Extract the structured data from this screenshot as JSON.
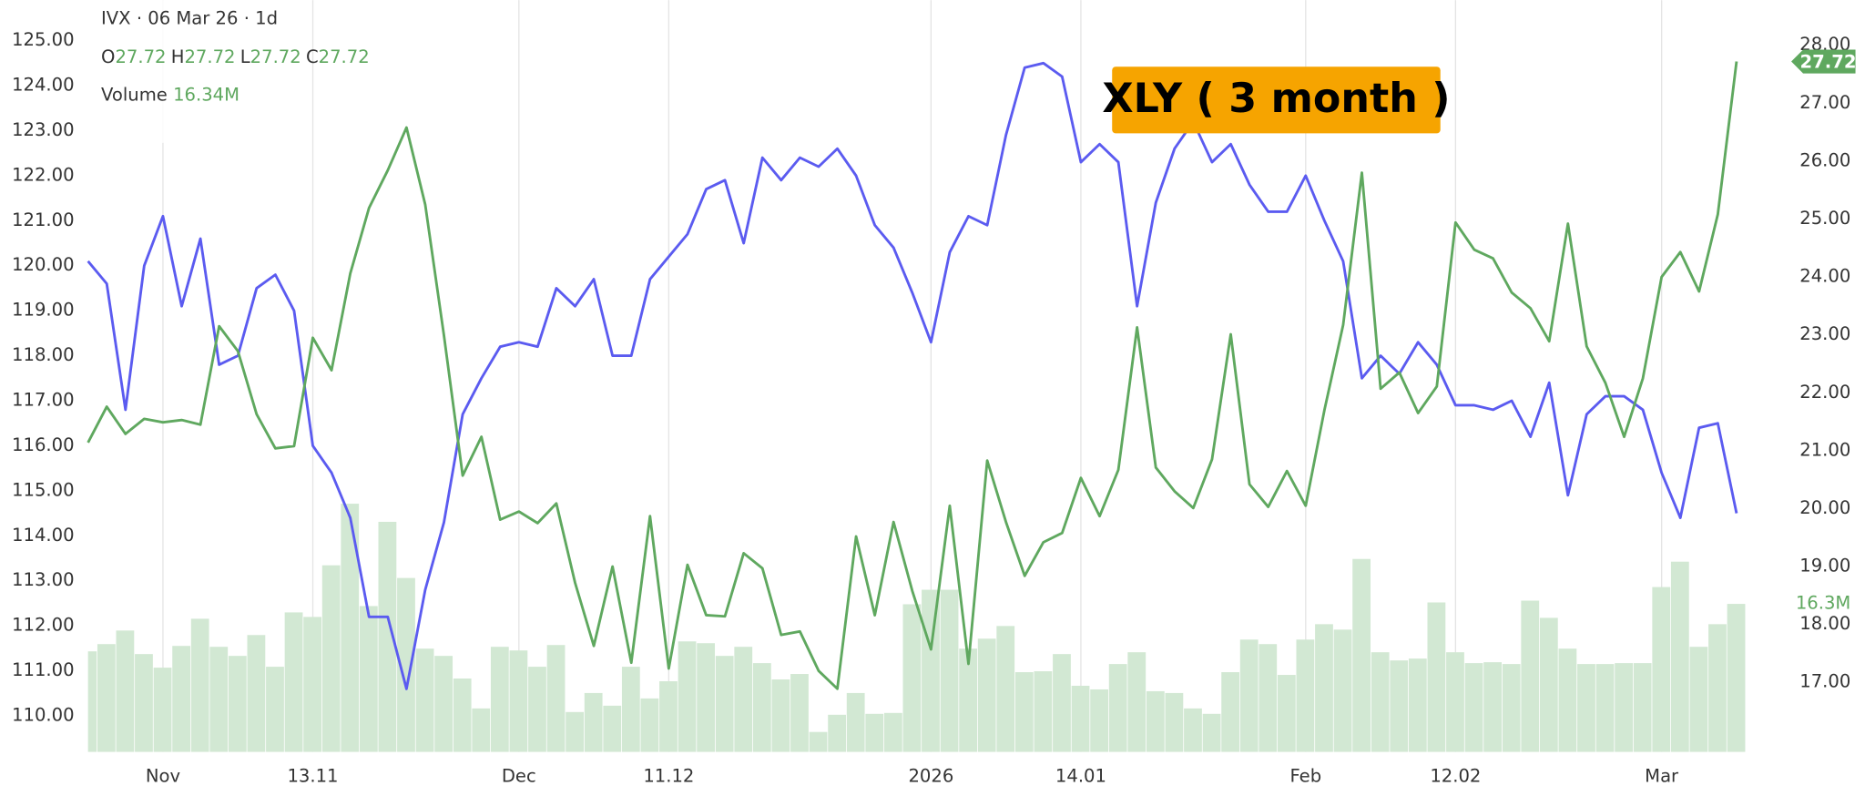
{
  "chart_data": {
    "type": "line",
    "title": "XLY ( 3 month )",
    "header": {
      "symbol": "IVX · 06 Mar 26 · 1d",
      "ohlc": [
        {
          "key": "O",
          "value": "27.72"
        },
        {
          "key": "H",
          "value": "27.72"
        },
        {
          "key": "L",
          "value": "27.72"
        },
        {
          "key": "C",
          "value": "27.72"
        }
      ],
      "volume": {
        "key": "Volume",
        "value": "16.34M"
      }
    },
    "categories": [
      null,
      null,
      null,
      null,
      "Nov",
      null,
      null,
      null,
      null,
      null,
      null,
      null,
      "13.11",
      null,
      null,
      null,
      null,
      null,
      null,
      null,
      null,
      null,
      null,
      "Dec",
      null,
      null,
      null,
      null,
      null,
      null,
      null,
      "11.12",
      null,
      null,
      null,
      null,
      null,
      null,
      null,
      null,
      null,
      null,
      null,
      null,
      null,
      "2026",
      null,
      null,
      null,
      null,
      null,
      null,
      null,
      "14.01",
      null,
      null,
      null,
      null,
      null,
      null,
      null,
      null,
      null,
      null,
      null,
      "Feb",
      null,
      null,
      null,
      null,
      null,
      null,
      null,
      "12.02",
      null,
      null,
      null,
      null,
      null,
      null,
      null,
      null,
      null,
      null,
      "Mar",
      null,
      null,
      null,
      null
    ],
    "series": [
      {
        "color": "#5b5bf0",
        "values": [
          120.1,
          119.6,
          116.8,
          120.0,
          121.1,
          119.1,
          120.6,
          117.8,
          118.0,
          119.5,
          119.8,
          119.0,
          116.0,
          115.4,
          114.4,
          112.2,
          112.2,
          110.6,
          112.8,
          114.3,
          116.7,
          117.5,
          118.2,
          118.3,
          118.2,
          119.5,
          119.1,
          119.7,
          118.0,
          118.0,
          119.7,
          120.2,
          120.7,
          121.7,
          121.9,
          120.5,
          122.4,
          121.9,
          122.4,
          122.2,
          122.6,
          122.0,
          120.9,
          120.4,
          119.4,
          118.3,
          120.3,
          121.1,
          120.9,
          122.9,
          124.4,
          124.5,
          124.2,
          122.3,
          122.7,
          122.3,
          119.1,
          121.4,
          122.6,
          123.2,
          122.3,
          122.7,
          121.8,
          121.2,
          121.2,
          122.0,
          121.0,
          120.1,
          117.5,
          118.0,
          117.6,
          118.3,
          117.8,
          116.9,
          116.9,
          116.8,
          117.0,
          116.2,
          117.4,
          114.9,
          116.7,
          117.1,
          117.1,
          116.8,
          115.4,
          114.4,
          116.4,
          116.5,
          114.5
        ]
      },
      {
        "color": "#5fa85f",
        "axis": "y2",
        "values": [
          21.14,
          21.76,
          21.29,
          21.55,
          21.49,
          21.53,
          21.45,
          23.15,
          22.72,
          21.63,
          21.04,
          21.08,
          22.95,
          22.39,
          24.06,
          25.19,
          25.84,
          26.58,
          25.25,
          22.99,
          20.57,
          21.24,
          19.81,
          19.95,
          19.75,
          20.09,
          18.72,
          17.63,
          19.0,
          17.34,
          19.87,
          17.24,
          19.03,
          18.16,
          18.14,
          19.23,
          18.97,
          17.82,
          17.88,
          17.2,
          16.89,
          19.52,
          18.16,
          19.77,
          18.58,
          17.57,
          20.05,
          17.32,
          20.83,
          19.77,
          18.84,
          19.42,
          19.58,
          20.53,
          19.87,
          20.67,
          23.13,
          20.71,
          20.3,
          20.01,
          20.85,
          23.01,
          20.42,
          20.03,
          20.65,
          20.05,
          21.7,
          23.17,
          25.8,
          22.07,
          22.35,
          21.65,
          22.11,
          24.94,
          24.47,
          24.32,
          23.73,
          23.46,
          22.89,
          24.92,
          22.8,
          22.17,
          21.24,
          22.25,
          24.0,
          24.43,
          23.75,
          25.08,
          27.72
        ]
      }
    ],
    "volume": {
      "color": "#d2e8d3",
      "ylim": [
        0,
        83
      ],
      "values": [
        11.1,
        11.9,
        13.4,
        10.8,
        9.3,
        11.7,
        14.7,
        11.6,
        10.6,
        12.9,
        9.4,
        15.4,
        14.9,
        20.6,
        27.4,
        16.1,
        25.4,
        19.2,
        11.4,
        10.6,
        8.1,
        4.8,
        11.6,
        11.2,
        9.4,
        11.8,
        4.4,
        6.5,
        5.1,
        9.4,
        5.9,
        7.8,
        12.2,
        12.0,
        10.6,
        11.6,
        9.8,
        8.0,
        8.6,
        2.2,
        4.1,
        6.5,
        4.2,
        4.3,
        16.3,
        17.9,
        17.9,
        11.4,
        12.5,
        13.9,
        8.8,
        8.9,
        10.8,
        7.3,
        6.9,
        9.7,
        11.0,
        6.7,
        6.5,
        4.8,
        4.2,
        8.8,
        12.4,
        11.9,
        8.5,
        12.4,
        14.1,
        13.5,
        21.3,
        11.0,
        10.1,
        10.3,
        16.5,
        11.0,
        9.8,
        9.9,
        9.7,
        16.7,
        14.8,
        11.4,
        9.7,
        9.7,
        9.8,
        9.8,
        18.2,
        21.0,
        11.6,
        14.1,
        16.34
      ],
      "value_labels": [
        null,
        null,
        null,
        null,
        null,
        null,
        null,
        null,
        null,
        null,
        null,
        null,
        null,
        null,
        null,
        null,
        null,
        null,
        null,
        null,
        null,
        null,
        null,
        null,
        null,
        null,
        null,
        null,
        null,
        null,
        null,
        null,
        null,
        null,
        null,
        null,
        null,
        null,
        null,
        null,
        null,
        null,
        null,
        null,
        null,
        null,
        null,
        null,
        null,
        null,
        null,
        null,
        null,
        null,
        null,
        null,
        null,
        null,
        null,
        null,
        null,
        null,
        null,
        null,
        null,
        null,
        null,
        null,
        null,
        null,
        null,
        null,
        null,
        null,
        null,
        null,
        null,
        null,
        null,
        null,
        null,
        null,
        null,
        null,
        null,
        null,
        null,
        null,
        "16.3M"
      ]
    },
    "ylim": [
      109.2,
      125.9
    ],
    "yticks": [
      {
        "value": 110,
        "label": "110.00"
      },
      {
        "value": 111,
        "label": "111.00"
      },
      {
        "value": 112,
        "label": "112.00"
      },
      {
        "value": 113,
        "label": "113.00"
      },
      {
        "value": 114,
        "label": "114.00"
      },
      {
        "value": 115,
        "label": "115.00"
      },
      {
        "value": 116,
        "label": "116.00"
      },
      {
        "value": 117,
        "label": "117.00"
      },
      {
        "value": 118,
        "label": "118.00"
      },
      {
        "value": 119,
        "label": "119.00"
      },
      {
        "value": 120,
        "label": "120.00"
      },
      {
        "value": 121,
        "label": "121.00"
      },
      {
        "value": 122,
        "label": "122.00"
      },
      {
        "value": 123,
        "label": "123.00"
      },
      {
        "value": 124,
        "label": "124.00"
      },
      {
        "value": 125,
        "label": "125.00"
      }
    ],
    "y2lim": [
      15.8,
      28.78
    ],
    "y2ticks": [
      {
        "value": 17,
        "label": "17.00"
      },
      {
        "value": 18,
        "label": "18.00"
      },
      {
        "value": 19,
        "label": "19.00"
      },
      {
        "value": 20,
        "label": "20.00"
      },
      {
        "value": 21,
        "label": "21.00"
      },
      {
        "value": 22,
        "label": "22.00"
      },
      {
        "value": 23,
        "label": "23.00"
      },
      {
        "value": 24,
        "label": "24.00"
      },
      {
        "value": 25,
        "label": "25.00"
      },
      {
        "value": 26,
        "label": "26.00"
      },
      {
        "value": 27,
        "label": "27.00"
      },
      {
        "value": 28,
        "label": "28.00"
      }
    ],
    "grid": true
  }
}
